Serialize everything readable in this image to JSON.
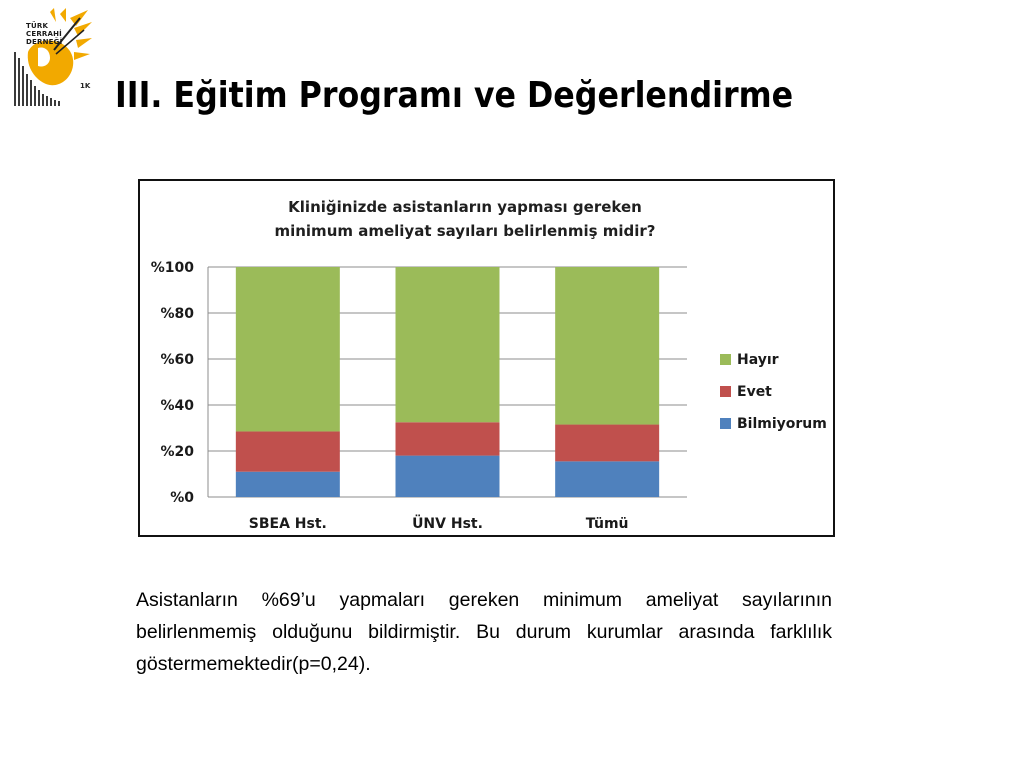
{
  "logo": {
    "lines": [
      "TÜRK",
      "CERRAHİ",
      "DERNEĞİ"
    ],
    "badge": "1K"
  },
  "slide": {
    "title": "III. Eğitim Programı ve Değerlendirme",
    "body_text": "Asistanların %69’u yapmaları gereken minimum ameliyat sayılarının belirlenmemiş olduğunu bildirmiştir. Bu durum kurumlar arasında farklılık göstermemektedir(p=0,24)."
  },
  "colors": {
    "hayir": "#9BBB59",
    "evet": "#C0504D",
    "bilmiyorum": "#4F81BD",
    "title_text": "#1F1F1F",
    "logo_accent": "#F2A900"
  },
  "chart_data": {
    "type": "bar",
    "stacked": true,
    "title_lines": [
      "Kliniğinizde asistanların yapması gereken",
      "minimum ameliyat sayıları belirlenmiş midir?"
    ],
    "categories": [
      "SBEA Hst.",
      "ÜNV Hst.",
      "Tümü"
    ],
    "series": [
      {
        "name": "Bilmiyorum",
        "values": [
          11,
          18,
          15.5
        ]
      },
      {
        "name": "Evet",
        "values": [
          17.5,
          14.5,
          16
        ]
      },
      {
        "name": "Hayır",
        "values": [
          71.5,
          67.5,
          68.5
        ]
      }
    ],
    "ylim": [
      0,
      100
    ],
    "yticks": [
      "%0",
      "%20",
      "%40",
      "%60",
      "%80",
      "%100"
    ],
    "legend": [
      "Hayır",
      "Evet",
      "Bilmiyorum"
    ],
    "legend_position": "right",
    "grid": true,
    "xlabel": "",
    "ylabel": ""
  }
}
